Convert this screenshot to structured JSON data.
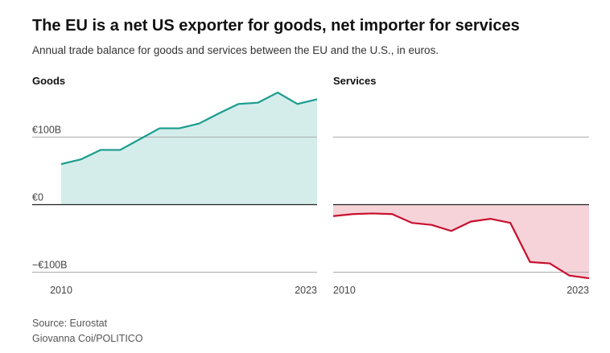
{
  "title": "The EU is a net US exporter for goods, net importer for services",
  "subtitle": "Annual trade balance for goods and services between the EU and the U.S., in euros.",
  "source": "Source: Eurostat",
  "credit": "Giovanna Coi/POLITICO",
  "chart_data": [
    {
      "type": "area",
      "title": "Goods",
      "x": [
        2010,
        2011,
        2012,
        2013,
        2014,
        2015,
        2016,
        2017,
        2018,
        2019,
        2020,
        2021,
        2022,
        2023
      ],
      "values": [
        60,
        67,
        81,
        81,
        97,
        113,
        113,
        120,
        135,
        149,
        151,
        166,
        149,
        156
      ],
      "unit": "billion euros",
      "ylim": [
        -100,
        170
      ],
      "y_ticks": [
        100,
        0,
        -100
      ],
      "y_tick_labels": [
        "€100B",
        "€0",
        "−€100B"
      ],
      "x_tick_labels": [
        "2010",
        "2023"
      ],
      "color": "#1a9c8d",
      "fill": "#d4edeb",
      "grid": true
    },
    {
      "type": "area",
      "title": "Services",
      "x": [
        2010,
        2011,
        2012,
        2013,
        2014,
        2015,
        2016,
        2017,
        2018,
        2019,
        2020,
        2021,
        2022,
        2023
      ],
      "values": [
        -17,
        -14,
        -13,
        -14,
        -27,
        -30,
        -39,
        -25,
        -21,
        -27,
        -85,
        -87,
        -105,
        -109
      ],
      "unit": "billion euros",
      "ylim": [
        -100,
        170
      ],
      "y_ticks": [
        100,
        0,
        -100
      ],
      "x_tick_labels": [
        "2010",
        "2023"
      ],
      "color": "#c8102e",
      "fill": "#f5d3d9",
      "grid": true
    }
  ]
}
